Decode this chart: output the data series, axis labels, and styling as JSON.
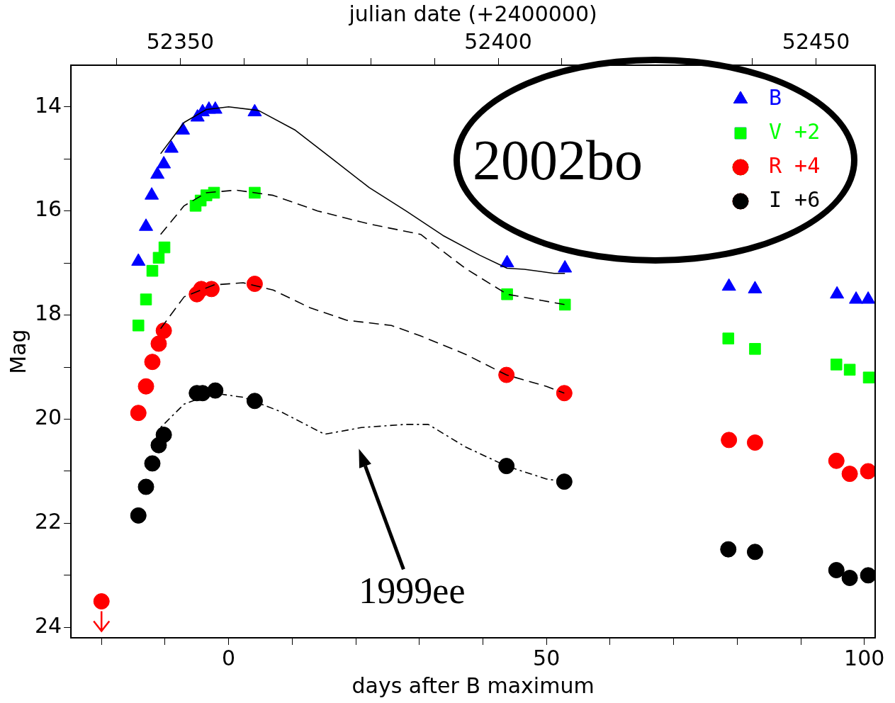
{
  "chart_data": {
    "type": "scatter",
    "xlabel": "days after B maximum",
    "x2label": "julian date (+2400000)",
    "ylabel": "Mag",
    "xlim": [
      -24.8,
      101.7
    ],
    "xticks": [
      {
        "value": -20,
        "label": null
      },
      {
        "value": -10,
        "label": null
      },
      0,
      {
        "value": 10,
        "label": null
      },
      {
        "value": 20,
        "label": null
      },
      {
        "value": 30,
        "label": null
      },
      {
        "value": 40,
        "label": null
      },
      50,
      {
        "value": 60,
        "label": null
      },
      {
        "value": 70,
        "label": null
      },
      {
        "value": 80,
        "label": null
      },
      {
        "value": 90,
        "label": null
      },
      100
    ],
    "x2lim": [
      52332.8,
      52459.3
    ],
    "x2ticks": [
      {
        "value": 52340,
        "label": null
      },
      52350,
      {
        "value": 52360,
        "label": null
      },
      {
        "value": 52370,
        "label": null
      },
      {
        "value": 52380,
        "label": null
      },
      {
        "value": 52390,
        "label": null
      },
      52400,
      {
        "value": 52410,
        "label": null
      },
      {
        "value": 52420,
        "label": null
      },
      {
        "value": 52430,
        "label": null
      },
      {
        "value": 52440,
        "label": null
      },
      52450
    ],
    "ylim": [
      24.2,
      13.2
    ],
    "yticks": [
      14,
      {
        "value": 15,
        "label": null
      },
      16,
      {
        "value": 17,
        "label": null
      },
      18,
      {
        "value": 19,
        "label": null
      },
      20,
      {
        "value": 21,
        "label": null
      },
      22,
      {
        "value": 23,
        "label": null
      },
      24
    ],
    "legend": "top right",
    "grid": false,
    "series": [
      {
        "name": "B",
        "color": "#0000ff",
        "marker": "triangle",
        "x": [
          -14.2,
          -13.0,
          -12.1,
          -11.2,
          -10.2,
          -9.0,
          -7.2,
          -4.9,
          -4.1,
          -3.1,
          -2.1,
          4.1,
          43.8,
          52.9,
          78.7,
          82.8,
          95.7,
          98.7,
          100.6
        ],
        "values": [
          16.97,
          16.3,
          15.7,
          15.3,
          15.1,
          14.8,
          14.45,
          14.2,
          14.1,
          14.05,
          14.05,
          14.1,
          17.0,
          17.1,
          17.45,
          17.5,
          17.6,
          17.7,
          17.7
        ]
      },
      {
        "name": "V +2",
        "color": "#00ff00",
        "marker": "square",
        "x": [
          -14.2,
          -13.0,
          -12.0,
          -11.0,
          -10.1,
          -5.2,
          -4.4,
          -3.5,
          -2.3,
          4.1,
          43.8,
          52.9,
          78.6,
          82.8,
          95.6,
          97.7,
          100.7
        ],
        "values": [
          18.2,
          17.7,
          17.15,
          16.9,
          16.7,
          15.9,
          15.8,
          15.7,
          15.65,
          15.65,
          17.6,
          17.8,
          18.45,
          18.65,
          18.95,
          19.05,
          19.2
        ]
      },
      {
        "name": "R +4",
        "color": "#ff0000",
        "marker": "circle",
        "x": [
          -20.0,
          -14.2,
          -13.0,
          -12.0,
          -11.0,
          -10.2,
          -5.0,
          -4.3,
          -2.7,
          4.1,
          43.7,
          52.8,
          78.7,
          82.8,
          95.6,
          97.7,
          100.6
        ],
        "values": [
          23.5,
          19.88,
          19.37,
          18.9,
          18.55,
          18.3,
          17.6,
          17.5,
          17.5,
          17.4,
          19.15,
          19.5,
          20.4,
          20.45,
          20.8,
          21.05,
          21.0
        ]
      },
      {
        "name": "I +6",
        "color": "#000000",
        "marker": "circle",
        "x": [
          -14.2,
          -13.0,
          -12.0,
          -11.0,
          -10.2,
          -5.0,
          -4.1,
          -2.1,
          4.1,
          43.7,
          52.8,
          78.6,
          82.8,
          95.6,
          97.7,
          100.6
        ],
        "values": [
          21.85,
          21.3,
          20.85,
          20.5,
          20.3,
          19.5,
          19.5,
          19.45,
          19.65,
          20.9,
          21.2,
          22.5,
          22.55,
          22.9,
          23.05,
          23.0
        ]
      },
      {
        "type": "line",
        "color": "#000000",
        "line_style": "solid",
        "marker": "none",
        "x": [
          -10.7,
          -7,
          -3.5,
          0,
          4.7,
          10.5,
          16.3,
          22.1,
          27.9,
          33.7,
          39.5,
          43.8,
          46.5,
          51.2,
          52.9
        ],
        "values": [
          14.9,
          14.3,
          14.05,
          14.0,
          14.07,
          14.45,
          15.0,
          15.55,
          16.0,
          16.47,
          16.85,
          17.1,
          17.12,
          17.2,
          17.2
        ]
      },
      {
        "type": "line",
        "color": "#000000",
        "line_style": "dashed",
        "marker": "none",
        "x": [
          -10.7,
          -7,
          -3.5,
          1.2,
          7,
          14,
          22.1,
          30.2,
          37.2,
          43.8,
          52.9
        ],
        "values": [
          16.45,
          15.9,
          15.65,
          15.6,
          15.7,
          16.0,
          16.25,
          16.45,
          17.1,
          17.6,
          17.8
        ]
      },
      {
        "type": "line",
        "color": "#000000",
        "line_style": "dashed",
        "marker": "none",
        "x": [
          -10.7,
          -7,
          -2.3,
          2.3,
          7,
          12.8,
          18.6,
          25.6,
          30.2,
          37.2,
          43.7,
          50,
          52.8
        ],
        "values": [
          18.26,
          17.65,
          17.42,
          17.38,
          17.52,
          17.86,
          18.1,
          18.2,
          18.4,
          18.75,
          19.15,
          19.37,
          19.5
        ]
      },
      {
        "type": "line",
        "color": "#000000",
        "line_style": "dotted",
        "marker": "none",
        "x": [
          -10.7,
          -7,
          -2.3,
          2.3,
          8.1,
          15.1,
          20.9,
          27.9,
          31.4,
          37.2,
          43.7,
          50,
          52.8
        ],
        "values": [
          20.16,
          19.71,
          19.5,
          19.58,
          19.85,
          20.29,
          20.16,
          20.1,
          20.1,
          20.53,
          20.9,
          21.15,
          21.2
        ]
      }
    ],
    "annotations": [
      "2002bo",
      "1999ee"
    ]
  }
}
